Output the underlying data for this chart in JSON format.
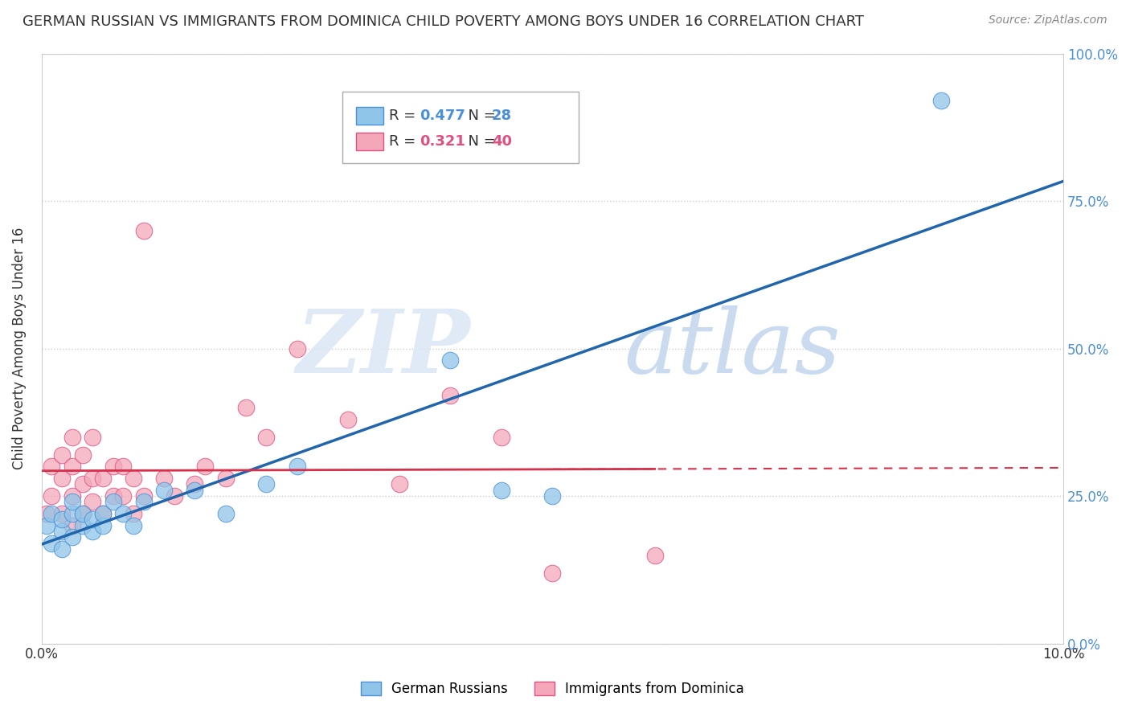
{
  "title": "GERMAN RUSSIAN VS IMMIGRANTS FROM DOMINICA CHILD POVERTY AMONG BOYS UNDER 16 CORRELATION CHART",
  "source": "Source: ZipAtlas.com",
  "ylabel": "Child Poverty Among Boys Under 16",
  "xlim": [
    0.0,
    0.1
  ],
  "ylim": [
    0.0,
    1.0
  ],
  "yticks": [
    0.0,
    0.25,
    0.5,
    0.75,
    1.0
  ],
  "ytick_labels": [
    "0.0%",
    "25.0%",
    "50.0%",
    "75.0%",
    "100.0%"
  ],
  "xtick_labels": [
    "0.0%",
    "",
    "",
    "",
    "",
    "10.0%"
  ],
  "legend1_R": "0.477",
  "legend1_N": "28",
  "legend2_R": "0.321",
  "legend2_N": "40",
  "blue_scatter_color": "#8fc5e8",
  "blue_edge_color": "#4a90d9",
  "pink_scatter_color": "#f4a7b9",
  "pink_edge_color": "#e05080",
  "blue_line_color": "#2166ac",
  "pink_line_color": "#d6304a",
  "watermark_zip_color": "#d0dff0",
  "watermark_atlas_color": "#c0cfe8",
  "german_russian_x": [
    0.0005,
    0.001,
    0.001,
    0.002,
    0.002,
    0.002,
    0.003,
    0.003,
    0.003,
    0.004,
    0.004,
    0.005,
    0.005,
    0.006,
    0.006,
    0.007,
    0.008,
    0.009,
    0.01,
    0.012,
    0.015,
    0.018,
    0.022,
    0.025,
    0.04,
    0.045,
    0.05,
    0.088
  ],
  "german_russian_y": [
    0.2,
    0.22,
    0.17,
    0.19,
    0.21,
    0.16,
    0.22,
    0.18,
    0.24,
    0.2,
    0.22,
    0.19,
    0.21,
    0.2,
    0.22,
    0.24,
    0.22,
    0.2,
    0.24,
    0.26,
    0.26,
    0.22,
    0.27,
    0.3,
    0.48,
    0.26,
    0.25,
    0.92
  ],
  "dominica_x": [
    0.0005,
    0.001,
    0.001,
    0.002,
    0.002,
    0.002,
    0.003,
    0.003,
    0.003,
    0.003,
    0.004,
    0.004,
    0.004,
    0.005,
    0.005,
    0.005,
    0.006,
    0.006,
    0.007,
    0.007,
    0.008,
    0.008,
    0.009,
    0.009,
    0.01,
    0.01,
    0.012,
    0.013,
    0.015,
    0.016,
    0.018,
    0.02,
    0.022,
    0.025,
    0.03,
    0.035,
    0.04,
    0.045,
    0.05,
    0.06
  ],
  "dominica_y": [
    0.22,
    0.25,
    0.3,
    0.22,
    0.28,
    0.32,
    0.2,
    0.25,
    0.3,
    0.35,
    0.22,
    0.27,
    0.32,
    0.24,
    0.28,
    0.35,
    0.22,
    0.28,
    0.25,
    0.3,
    0.25,
    0.3,
    0.22,
    0.28,
    0.25,
    0.7,
    0.28,
    0.25,
    0.27,
    0.3,
    0.28,
    0.4,
    0.35,
    0.5,
    0.38,
    0.27,
    0.42,
    0.35,
    0.12,
    0.15
  ]
}
